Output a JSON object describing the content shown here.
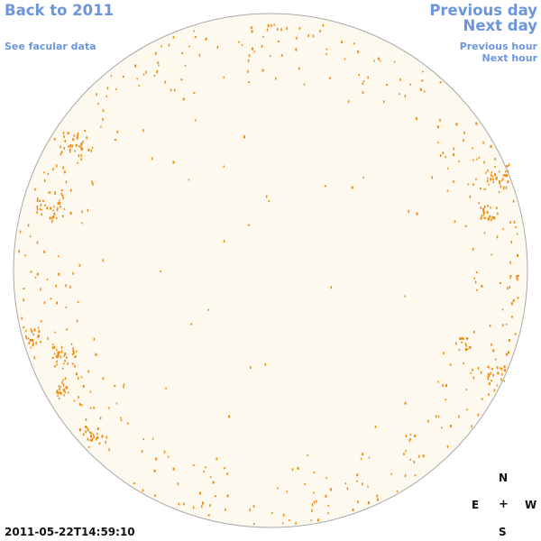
{
  "nav": {
    "back_label": "Back to 2011",
    "facular_label": "See facular data",
    "previous_day_label": "Previous day",
    "next_day_label": "Next day",
    "previous_hour_label": "Previous hour",
    "next_hour_label": "Next hour"
  },
  "compass": {
    "north": "N",
    "east": "E",
    "center": "+",
    "west": "W",
    "south": "S"
  },
  "timestamp": "2011-05-22T14:59:10",
  "colors": {
    "link": "#6b96dd",
    "disk_fill": "#fdf9ef",
    "disk_edge": "#a8a8a8",
    "facula": "#ee8a12"
  }
}
